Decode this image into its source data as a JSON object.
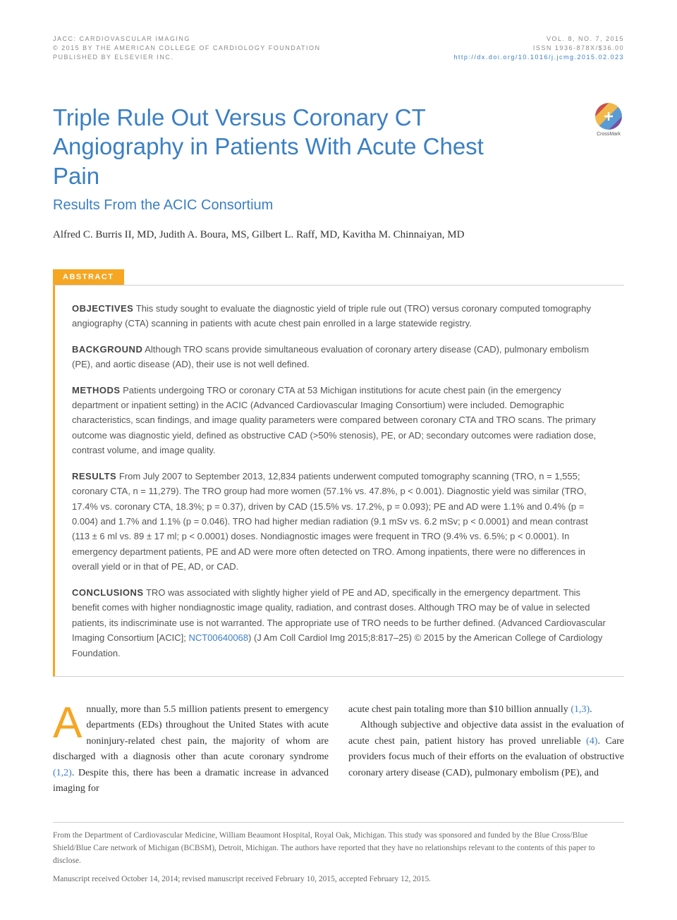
{
  "header": {
    "journal": "JACC: CARDIOVASCULAR IMAGING",
    "copyright": "© 2015 BY THE AMERICAN COLLEGE OF CARDIOLOGY FOUNDATION",
    "publisher": "PUBLISHED BY ELSEVIER INC.",
    "volume": "VOL. 8, NO. 7, 2015",
    "issn": "ISSN 1936-878X/$36.00",
    "doi": "http://dx.doi.org/10.1016/j.jcmg.2015.02.023"
  },
  "crossmark_label": "CrossMark",
  "title": "Triple Rule Out Versus Coronary CT Angiography in Patients With Acute Chest Pain",
  "subtitle": "Results From the ACIC Consortium",
  "authors": "Alfred C. Burris II, MD, Judith A. Boura, MS, Gilbert L. Raff, MD, Kavitha M. Chinnaiyan, MD",
  "abstract_label": "ABSTRACT",
  "abstract": {
    "objectives": {
      "label": "OBJECTIVES",
      "text": "This study sought to evaluate the diagnostic yield of triple rule out (TRO) versus coronary computed tomography angiography (CTA) scanning in patients with acute chest pain enrolled in a large statewide registry."
    },
    "background": {
      "label": "BACKGROUND",
      "text": "Although TRO scans provide simultaneous evaluation of coronary artery disease (CAD), pulmonary embolism (PE), and aortic disease (AD), their use is not well defined."
    },
    "methods": {
      "label": "METHODS",
      "text": "Patients undergoing TRO or coronary CTA at 53 Michigan institutions for acute chest pain (in the emergency department or inpatient setting) in the ACIC (Advanced Cardiovascular Imaging Consortium) were included. Demographic characteristics, scan findings, and image quality parameters were compared between coronary CTA and TRO scans. The primary outcome was diagnostic yield, defined as obstructive CAD (>50% stenosis), PE, or AD; secondary outcomes were radiation dose, contrast volume, and image quality."
    },
    "results": {
      "label": "RESULTS",
      "text": "From July 2007 to September 2013, 12,834 patients underwent computed tomography scanning (TRO, n = 1,555; coronary CTA, n = 11,279). The TRO group had more women (57.1% vs. 47.8%, p < 0.001). Diagnostic yield was similar (TRO, 17.4% vs. coronary CTA, 18.3%; p = 0.37), driven by CAD (15.5% vs. 17.2%, p = 0.093); PE and AD were 1.1% and 0.4% (p = 0.004) and 1.7% and 1.1% (p = 0.046). TRO had higher median radiation (9.1 mSv vs. 6.2 mSv; p < 0.0001) and mean contrast (113 ± 6 ml vs. 89 ± 17 ml; p < 0.0001) doses. Nondiagnostic images were frequent in TRO (9.4% vs. 6.5%; p < 0.0001). In emergency department patients, PE and AD were more often detected on TRO. Among inpatients, there were no differences in overall yield or in that of PE, AD, or CAD."
    },
    "conclusions": {
      "label": "CONCLUSIONS",
      "text_before": "TRO was associated with slightly higher yield of PE and AD, specifically in the emergency department. This benefit comes with higher nondiagnostic image quality, radiation, and contrast doses. Although TRO may be of value in selected patients, its indiscriminate use is not warranted. The appropriate use of TRO needs to be further defined. (Advanced Cardiovascular Imaging Consortium [ACIC]; ",
      "nct": "NCT00640068",
      "text_after": ") (J Am Coll Cardiol Img 2015;8:817–25) © 2015 by the American College of Cardiology Foundation."
    }
  },
  "body": {
    "col1": {
      "dropcap": "A",
      "p1_before": "nnually, more than 5.5 million patients present to emergency departments (EDs) throughout the United States with acute noninjury-related chest pain, the majority of whom are discharged with a diagnosis other than acute coronary syndrome ",
      "ref1": "(1,2)",
      "p1_after": ". Despite this, there has been a dramatic increase in advanced imaging for"
    },
    "col2": {
      "p1_before": "acute chest pain totaling more than $10 billion annually ",
      "ref1": "(1,3)",
      "p1_after": ".",
      "p2_before": "Although subjective and objective data assist in the evaluation of acute chest pain, patient history has proved unreliable ",
      "ref2": "(4)",
      "p2_after": ". Care providers focus much of their efforts on the evaluation of obstructive coronary artery disease (CAD), pulmonary embolism (PE), and"
    }
  },
  "footer": {
    "affiliation": "From the Department of Cardiovascular Medicine, William Beaumont Hospital, Royal Oak, Michigan. This study was sponsored and funded by the Blue Cross/Blue Shield/Blue Care network of Michigan (BCBSM), Detroit, Michigan. The authors have reported that they have no relationships relevant to the contents of this paper to disclose.",
    "dates": "Manuscript received October 14, 2014; revised manuscript received February 10, 2015, accepted February 12, 2015."
  },
  "colors": {
    "accent_blue": "#3b7fc4",
    "accent_orange": "#f5a623",
    "text_body": "#333333",
    "text_abstract": "#555555",
    "text_header": "#888888",
    "rule": "#cccccc"
  }
}
